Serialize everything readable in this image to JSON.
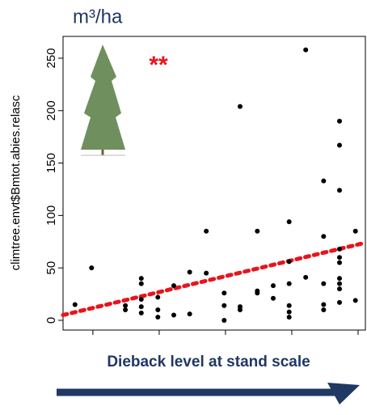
{
  "chart_data": {
    "type": "scatter",
    "title": "m³/ha",
    "ylabel": "climtree.envt$Bmtot.abies.relasc",
    "xlabel": "Dieback level at stand scale",
    "annotation": "**",
    "color": "#000000",
    "x": [
      0.73,
      0.98,
      1.49,
      1.49,
      1.73,
      1.73,
      1.73,
      1.73,
      1.73,
      1.98,
      1.98,
      1.98,
      2.22,
      2.22,
      2.46,
      2.46,
      2.71,
      2.71,
      2.98,
      2.98,
      2.98,
      3.22,
      3.22,
      3.22,
      3.48,
      3.48,
      3.48,
      3.72,
      3.72,
      3.96,
      3.96,
      3.96,
      3.96,
      3.96,
      3.96,
      4.21,
      4.21,
      4.48,
      4.48,
      4.48,
      4.48,
      4.48,
      4.72,
      4.72,
      4.72,
      4.72,
      4.72,
      4.72,
      4.72,
      4.72,
      4.72,
      4.72,
      4.96,
      4.96
    ],
    "values": [
      15,
      50,
      14,
      10,
      40,
      35,
      20,
      13,
      7,
      22,
      10,
      3,
      33,
      5,
      46,
      6,
      85,
      45,
      26,
      14,
      0,
      204,
      13,
      10,
      85,
      28,
      26,
      33,
      21,
      94,
      56,
      35,
      14,
      8,
      3,
      258,
      41,
      133,
      80,
      35,
      15,
      10,
      190,
      167,
      124,
      68,
      60,
      55,
      40,
      35,
      30,
      17,
      85,
      19
    ],
    "trend": {
      "color": "#e8141c",
      "x": [
        0.55,
        5.11
      ],
      "values": [
        5,
        74
      ]
    },
    "xlim": [
      0.55,
      5.11
    ],
    "xticks": [
      1,
      2,
      3,
      4,
      5
    ],
    "ylim": [
      -9.3,
      270.8
    ],
    "yticks": [
      0,
      50,
      100,
      150,
      200,
      250
    ]
  }
}
